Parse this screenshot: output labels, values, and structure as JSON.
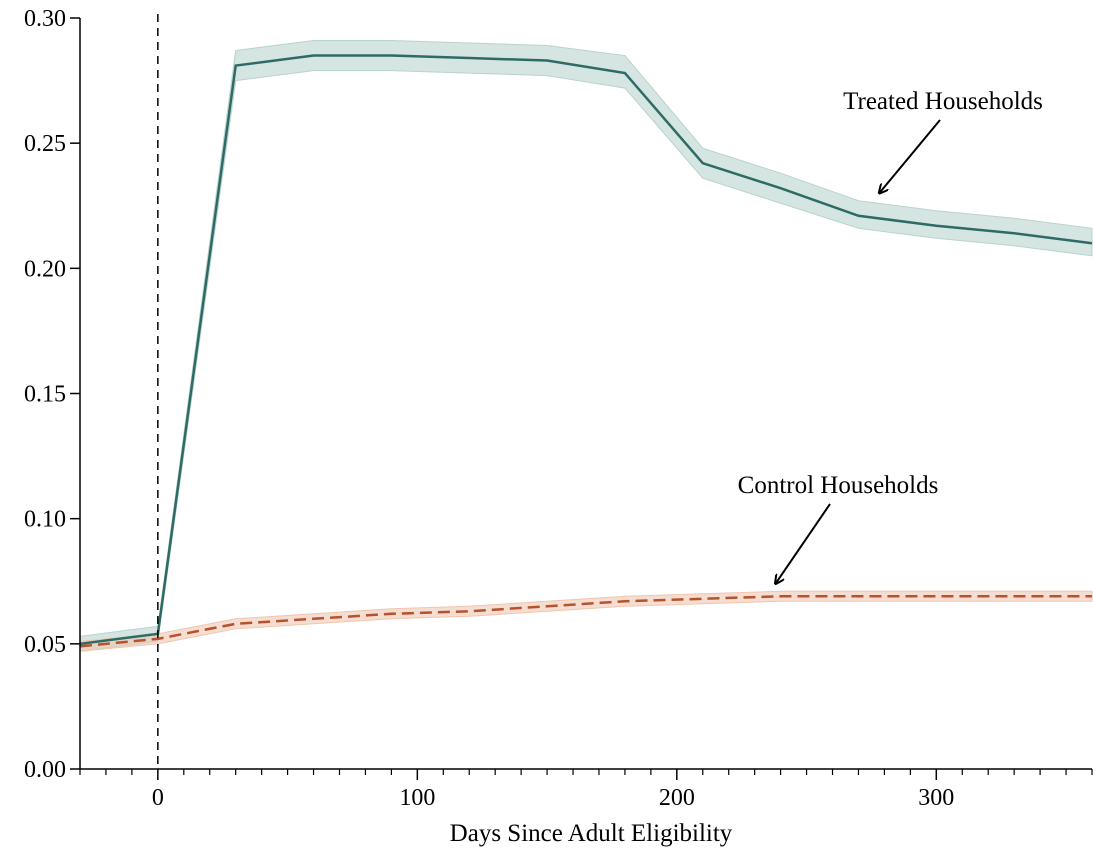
{
  "chart_data": {
    "type": "line",
    "title": "",
    "xlabel": "Days Since Adult Eligibility",
    "ylabel": "",
    "xlim": [
      -30,
      360
    ],
    "ylim": [
      0.0,
      0.3
    ],
    "x_ticks": [
      0,
      100,
      200,
      300
    ],
    "x_tick_labels": [
      "0",
      "100",
      "200",
      "300"
    ],
    "x_minor_step": 10,
    "y_ticks": [
      0.0,
      0.05,
      0.1,
      0.15,
      0.2,
      0.25,
      0.3
    ],
    "y_tick_labels": [
      "0.00",
      "0.05",
      "0.10",
      "0.15",
      "0.20",
      "0.25",
      "0.30"
    ],
    "grid": false,
    "reference_line": {
      "x": 0,
      "style": "dashed",
      "color": "#000000"
    },
    "series": [
      {
        "name": "Treated Households",
        "color": "#2e6b65",
        "band_color": "#b9d3cf",
        "line_style": "solid",
        "x": [
          -30,
          0,
          30,
          60,
          90,
          120,
          150,
          180,
          210,
          240,
          270,
          300,
          330,
          360
        ],
        "y": [
          0.05,
          0.054,
          0.281,
          0.285,
          0.285,
          0.284,
          0.283,
          0.278,
          0.242,
          0.232,
          0.221,
          0.217,
          0.214,
          0.21
        ],
        "lower": [
          0.047,
          0.051,
          0.275,
          0.279,
          0.279,
          0.278,
          0.277,
          0.272,
          0.236,
          0.226,
          0.216,
          0.212,
          0.209,
          0.205
        ],
        "upper": [
          0.053,
          0.057,
          0.287,
          0.291,
          0.291,
          0.29,
          0.289,
          0.285,
          0.248,
          0.238,
          0.227,
          0.223,
          0.22,
          0.216
        ]
      },
      {
        "name": "Control Households",
        "color": "#b5532d",
        "band_color": "#f0c6b2",
        "line_style": "dashed",
        "x": [
          -30,
          0,
          30,
          60,
          90,
          120,
          150,
          180,
          210,
          240,
          270,
          300,
          330,
          360
        ],
        "y": [
          0.049,
          0.052,
          0.058,
          0.06,
          0.062,
          0.063,
          0.065,
          0.067,
          0.068,
          0.069,
          0.069,
          0.069,
          0.069,
          0.069
        ],
        "lower": [
          0.047,
          0.05,
          0.056,
          0.058,
          0.06,
          0.061,
          0.063,
          0.065,
          0.066,
          0.067,
          0.067,
          0.067,
          0.067,
          0.067
        ],
        "upper": [
          0.051,
          0.054,
          0.06,
          0.062,
          0.064,
          0.065,
          0.067,
          0.069,
          0.07,
          0.071,
          0.071,
          0.071,
          0.071,
          0.071
        ]
      }
    ],
    "annotations": [
      {
        "text": "Treated Households",
        "arrow_to": [
          278,
          0.23
        ]
      },
      {
        "text": "Control Households",
        "arrow_to": [
          238,
          0.074
        ]
      }
    ]
  }
}
